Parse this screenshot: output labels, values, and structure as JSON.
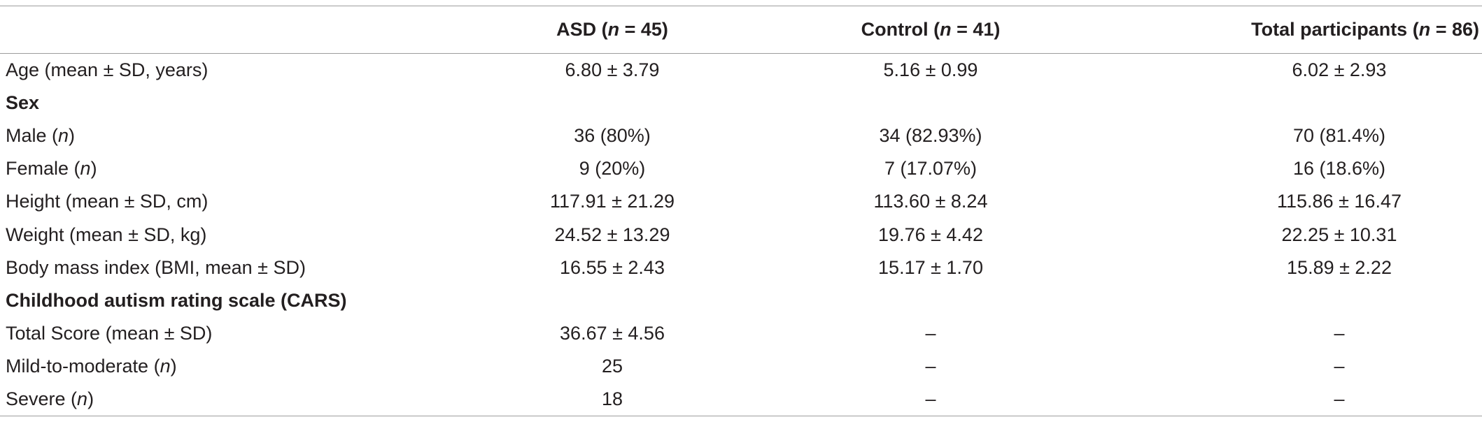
{
  "table": {
    "headers": [
      "",
      "ASD (n = 45)",
      "Control (n = 41)",
      "Total participants (n = 86)"
    ],
    "rows": [
      {
        "type": "data",
        "label": "Age (mean ± SD, years)",
        "asd": "6.80 ± 3.79",
        "control": "5.16 ± 0.99",
        "total": "6.02 ± 2.93"
      },
      {
        "type": "section",
        "label": "Sex"
      },
      {
        "type": "data",
        "label": "Male (n)",
        "asd": "36 (80%)",
        "control": "34 (82.93%)",
        "total": "70 (81.4%)"
      },
      {
        "type": "data",
        "label": "Female (n)",
        "asd": "9 (20%)",
        "control": "7 (17.07%)",
        "total": "16 (18.6%)"
      },
      {
        "type": "data",
        "label": "Height (mean ± SD, cm)",
        "asd": "117.91 ± 21.29",
        "control": "113.60 ± 8.24",
        "total": "115.86 ± 16.47"
      },
      {
        "type": "data",
        "label": "Weight (mean ± SD, kg)",
        "asd": "24.52 ± 13.29",
        "control": "19.76 ± 4.42",
        "total": "22.25 ± 10.31"
      },
      {
        "type": "data",
        "label": "Body mass index (BMI, mean ± SD)",
        "asd": "16.55 ± 2.43",
        "control": "15.17 ± 1.70",
        "total": "15.89 ± 2.22"
      },
      {
        "type": "section",
        "label": "Childhood autism rating scale (CARS)"
      },
      {
        "type": "data",
        "label": "Total Score (mean ± SD)",
        "asd": "36.67 ± 4.56",
        "control": "–",
        "total": "–"
      },
      {
        "type": "data",
        "label": "Mild-to-moderate (n)",
        "asd": "25",
        "control": "–",
        "total": "–"
      },
      {
        "type": "data",
        "label": "Severe (n)",
        "asd": "18",
        "control": "–",
        "total": "–"
      }
    ]
  }
}
